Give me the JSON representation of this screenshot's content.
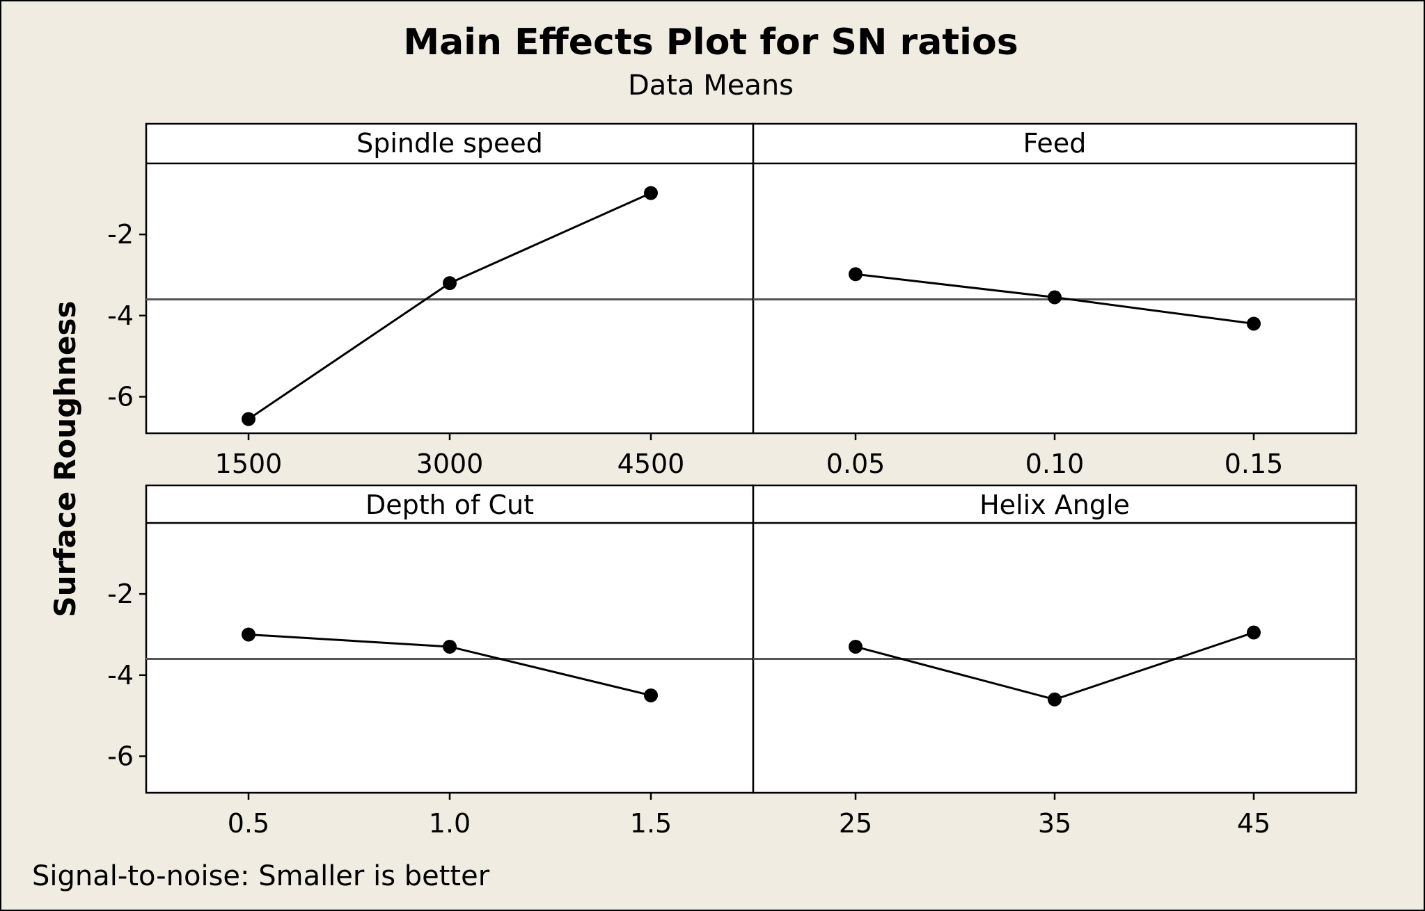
{
  "chart_data": {
    "type": "line",
    "title": "Main Effects Plot for SN ratios",
    "subtitle": "Data Means",
    "ylabel": "Surface Roughness",
    "footnote": "Signal-to-noise: Smaller is better",
    "ylim": [
      -6.9,
      -0.25
    ],
    "yticks": [
      -2,
      -4,
      -6
    ],
    "ytick_labels": [
      "-2",
      "-4",
      "-6"
    ],
    "reference_mean": -3.6,
    "grid": false,
    "colors": {
      "background": "#f0ece2",
      "line": "#000000",
      "reference": "#555555"
    },
    "panels": [
      {
        "name": "Spindle speed",
        "categories": [
          "1500",
          "3000",
          "4500"
        ],
        "values": [
          -6.55,
          -3.2,
          -0.98
        ]
      },
      {
        "name": "Feed",
        "categories": [
          "0.05",
          "0.10",
          "0.15"
        ],
        "values": [
          -2.98,
          -3.55,
          -4.2
        ]
      },
      {
        "name": "Depth of Cut",
        "categories": [
          "0.5",
          "1.0",
          "1.5"
        ],
        "values": [
          -3.0,
          -3.3,
          -4.5
        ]
      },
      {
        "name": "Helix Angle",
        "categories": [
          "25",
          "35",
          "45"
        ],
        "values": [
          -3.3,
          -4.6,
          -2.95
        ]
      }
    ]
  }
}
